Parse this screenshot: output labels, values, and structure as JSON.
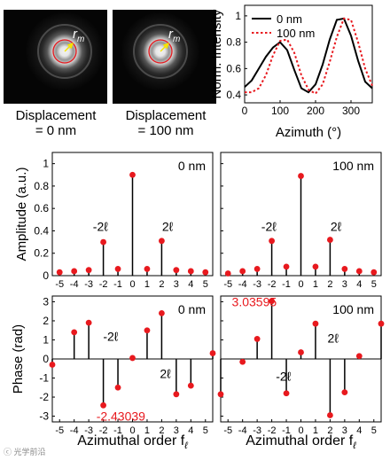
{
  "images": [
    {
      "caption_line1": "Displacement",
      "caption_line2": "= 0 nm",
      "label": "r",
      "label_sub": "m"
    },
    {
      "caption_line1": "Displacement",
      "caption_line2": "= 100 nm",
      "label": "r",
      "label_sub": "m"
    }
  ],
  "watermark": "ⓒ 光学前沿",
  "chart_data": [
    {
      "type": "line",
      "id": "intensity",
      "xlabel": "Azimuth (°)",
      "ylabel": "Norm. Intensity",
      "xlim": [
        0,
        360
      ],
      "ylim": [
        0.34,
        1.08
      ],
      "xticks": [
        0,
        100,
        200,
        300
      ],
      "yticks": [
        0.4,
        0.6,
        0.8,
        1.0
      ],
      "ytick_labels": [
        "0.4",
        "0.6",
        "0.8",
        "1"
      ],
      "legend_position": "top-right",
      "series": [
        {
          "name": "0 nm",
          "style": "solid",
          "color": "#000000",
          "x": [
            0,
            20,
            40,
            60,
            80,
            100,
            120,
            140,
            160,
            180,
            200,
            220,
            240,
            260,
            280,
            300,
            320,
            340,
            360
          ],
          "y": [
            0.46,
            0.51,
            0.6,
            0.69,
            0.76,
            0.8,
            0.74,
            0.59,
            0.45,
            0.42,
            0.48,
            0.63,
            0.82,
            0.97,
            0.98,
            0.85,
            0.66,
            0.5,
            0.45
          ]
        },
        {
          "name": "100 nm",
          "style": "dotted",
          "color": "#e8191e",
          "x": [
            0,
            20,
            40,
            60,
            80,
            100,
            120,
            140,
            160,
            180,
            200,
            220,
            240,
            260,
            280,
            300,
            320,
            340,
            360
          ],
          "y": [
            0.42,
            0.42,
            0.45,
            0.55,
            0.7,
            0.81,
            0.82,
            0.72,
            0.55,
            0.44,
            0.41,
            0.48,
            0.65,
            0.84,
            0.98,
            0.97,
            0.8,
            0.6,
            0.47
          ]
        }
      ]
    },
    {
      "type": "stem",
      "id": "amp0",
      "ylabel": "Amplitude (a.u.)",
      "legend": "0 nm",
      "x": [
        -5,
        -4,
        -3,
        -2,
        -1,
        0,
        1,
        2,
        3,
        4,
        5
      ],
      "y": [
        0.03,
        0.04,
        0.05,
        0.3,
        0.06,
        0.9,
        0.06,
        0.31,
        0.05,
        0.04,
        0.03
      ],
      "xlim": [
        -5.5,
        5.5
      ],
      "ylim": [
        0,
        1.1
      ],
      "yticks": [
        0,
        0.2,
        0.4,
        0.6,
        0.8,
        1.0
      ],
      "ytick_labels": [
        "0",
        "0.2",
        "0.4",
        "0.6",
        "0.8",
        "1"
      ],
      "xticks": [
        -5,
        -4,
        -3,
        -2,
        -1,
        0,
        1,
        2,
        3,
        4,
        5
      ],
      "annotations": [
        {
          "text": "-2ℓ",
          "x": -2.2,
          "y": 0.4
        },
        {
          "text": "2ℓ",
          "x": 2.4,
          "y": 0.4
        }
      ]
    },
    {
      "type": "stem",
      "id": "amp100",
      "legend": "100 nm",
      "x": [
        -5,
        -4,
        -3,
        -2,
        -1,
        0,
        1,
        2,
        3,
        4,
        5
      ],
      "y": [
        0.02,
        0.04,
        0.06,
        0.31,
        0.08,
        0.89,
        0.08,
        0.32,
        0.06,
        0.04,
        0.03
      ],
      "xlim": [
        -5.5,
        5.5
      ],
      "ylim": [
        0,
        1.1
      ],
      "yticks": [
        0,
        0.2,
        0.4,
        0.6,
        0.8,
        1.0
      ],
      "xticks": [
        -5,
        -4,
        -3,
        -2,
        -1,
        0,
        1,
        2,
        3,
        4,
        5
      ],
      "annotations": [
        {
          "text": "-2ℓ",
          "x": -2.2,
          "y": 0.4
        },
        {
          "text": "2ℓ",
          "x": 2.4,
          "y": 0.4
        }
      ]
    },
    {
      "type": "stem",
      "id": "phase0",
      "ylabel": "Phase (rad)",
      "xlabel": "Azimuthal order f",
      "xlabel_sub": "ℓ",
      "legend": "0 nm",
      "x": [
        -5.5,
        -4,
        -3,
        -2,
        -1,
        0,
        1,
        2,
        3,
        4,
        5.5
      ],
      "y": [
        -0.3,
        1.4,
        1.9,
        -2.43039,
        -1.5,
        0.05,
        1.5,
        2.4,
        -1.85,
        -1.4,
        0.3
      ],
      "xlim": [
        -5.5,
        5.5
      ],
      "ylim": [
        -3.3,
        3.3
      ],
      "yticks": [
        -3,
        -2,
        -1,
        0,
        1,
        2,
        3
      ],
      "xticks": [
        -5,
        -4,
        -3,
        -2,
        -1,
        0,
        1,
        2,
        3,
        4,
        5
      ],
      "annotations": [
        {
          "text": "-2ℓ",
          "x": -1.5,
          "y": 0.95
        },
        {
          "text": "2ℓ",
          "x": 2.25,
          "y": -1.0
        }
      ],
      "value_label": {
        "text": "-2.43039",
        "x": -0.8,
        "y": -3.0,
        "color": "#e8191e"
      }
    },
    {
      "type": "stem",
      "id": "phase100",
      "xlabel": "Azimuthal order f",
      "xlabel_sub": "ℓ",
      "legend": "100 nm",
      "x": [
        -5.5,
        -4,
        -3,
        -2,
        -1,
        0,
        1,
        2,
        3,
        4,
        5.5
      ],
      "y": [
        -1.85,
        -0.15,
        1.05,
        3.03595,
        -1.8,
        0.35,
        1.85,
        -2.95,
        -1.75,
        0.15,
        1.85
      ],
      "xlim": [
        -5.5,
        5.5
      ],
      "ylim": [
        -3.3,
        3.3
      ],
      "yticks": [
        -3,
        -2,
        -1,
        0,
        1,
        2,
        3
      ],
      "xticks": [
        -5,
        -4,
        -3,
        -2,
        -1,
        0,
        1,
        2,
        3,
        4,
        5
      ],
      "annotations": [
        {
          "text": "-2ℓ",
          "x": -1.2,
          "y": -1.15
        },
        {
          "text": "2ℓ",
          "x": 2.2,
          "y": 0.85
        }
      ],
      "value_label": {
        "text": "3.03595",
        "x": -3.2,
        "y": 3.0,
        "color": "#e8191e"
      }
    }
  ]
}
